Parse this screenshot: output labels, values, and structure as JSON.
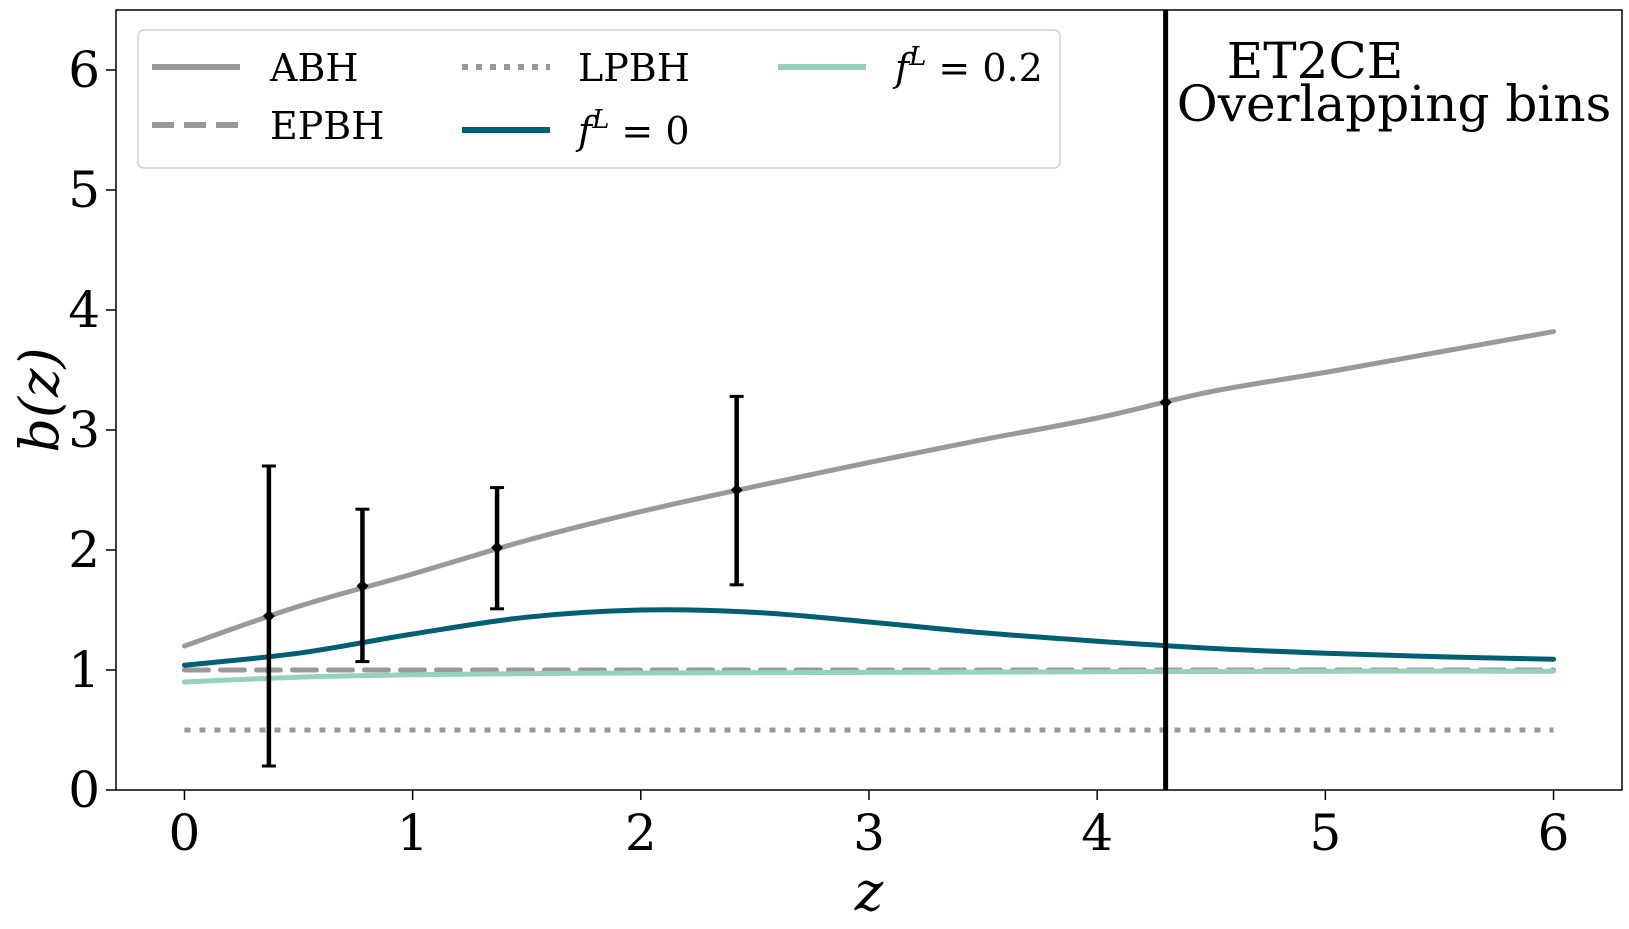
{
  "chart_data": {
    "type": "line",
    "title": "",
    "xlabel": "z",
    "ylabel": "b(z)",
    "xlim": [
      -0.3,
      6.3
    ],
    "ylim": [
      0,
      6.5
    ],
    "xticks": [
      "0",
      "1",
      "2",
      "3",
      "4",
      "5",
      "6"
    ],
    "yticks": [
      "0",
      "1",
      "2",
      "3",
      "4",
      "5",
      "6"
    ],
    "grid": false,
    "legend_position": "upper-left",
    "series": [
      {
        "name": "ABH",
        "style": "solid",
        "color": "#999999",
        "x": [
          0,
          0.5,
          1,
          1.5,
          2,
          2.5,
          3,
          3.5,
          4,
          4.5,
          5,
          5.5,
          6
        ],
        "y": [
          1.2,
          1.53,
          1.8,
          2.08,
          2.32,
          2.53,
          2.73,
          2.92,
          3.1,
          3.32,
          3.48,
          3.65,
          3.82
        ]
      },
      {
        "name": "EPBH",
        "style": "dashed",
        "color": "#999999",
        "x": [
          0,
          6
        ],
        "y": [
          1.0,
          1.0
        ]
      },
      {
        "name": "LPBH",
        "style": "dotted",
        "color": "#999999",
        "x": [
          0,
          6
        ],
        "y": [
          0.5,
          0.5
        ]
      },
      {
        "name": "f^L = 0",
        "style": "solid",
        "color": "#005f73",
        "x": [
          0,
          0.5,
          1,
          1.5,
          2,
          2.5,
          3,
          3.5,
          4,
          4.5,
          5,
          5.5,
          6
        ],
        "y": [
          1.04,
          1.14,
          1.3,
          1.44,
          1.5,
          1.48,
          1.4,
          1.31,
          1.24,
          1.18,
          1.14,
          1.11,
          1.09
        ]
      },
      {
        "name": "f^L = 0.2",
        "style": "solid",
        "color": "#94d2bd",
        "x": [
          0,
          0.5,
          1,
          1.5,
          2,
          3,
          4,
          5,
          6
        ],
        "y": [
          0.9,
          0.94,
          0.96,
          0.97,
          0.975,
          0.98,
          0.985,
          0.99,
          0.99
        ]
      }
    ],
    "error_points": [
      {
        "x": 0.37,
        "y": 1.45,
        "low": 0.2,
        "high": 2.7
      },
      {
        "x": 0.78,
        "y": 1.7,
        "low": 1.07,
        "high": 2.34
      },
      {
        "x": 1.37,
        "y": 2.02,
        "low": 1.51,
        "high": 2.52
      },
      {
        "x": 2.42,
        "y": 2.5,
        "low": 1.71,
        "high": 3.28
      },
      {
        "x": 4.3,
        "y": 3.23,
        "low": 0,
        "high": 6.5
      }
    ],
    "legend_labels": {
      "abh": "ABH",
      "epbh": "EPBH",
      "lpbh": "LPBH",
      "f0": "f",
      "f0_sup": "L",
      "f0_rest": " = 0",
      "f02": "f",
      "f02_sup": "L",
      "f02_rest": " = 0.2"
    },
    "annotations": [
      "ET2CE",
      "Overlapping bins"
    ]
  }
}
